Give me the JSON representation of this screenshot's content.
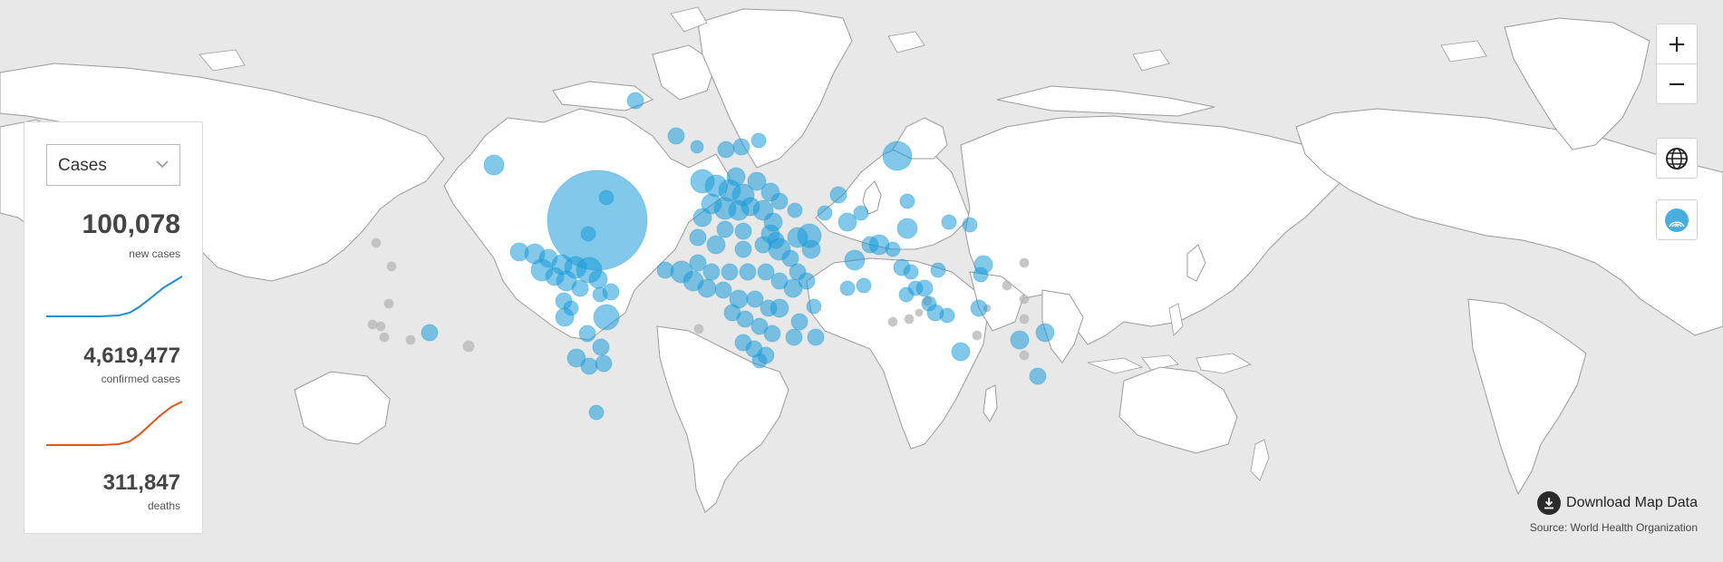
{
  "map": {
    "colors": {
      "ocean": "#e8e8e8",
      "land": "#ffffff",
      "border": "#9a9a9a",
      "bubble": "#1a9ad8",
      "bubble_grey": "#b9b9b9"
    }
  },
  "stats_panel": {
    "metric_select": {
      "selected": "Cases",
      "icon": "chevron-down-icon"
    },
    "new_cases": {
      "value": "100,078",
      "label": "new cases",
      "trend_color": "#1a8fd0"
    },
    "confirmed": {
      "value": "4,619,477",
      "label": "confirmed cases",
      "trend_color": "#e0551a"
    },
    "deaths": {
      "value": "311,847",
      "label": "deaths"
    }
  },
  "controls": {
    "zoom_in": "+",
    "zoom_out": "−",
    "globe_icon": "globe-icon",
    "bubble_layer_icon": "bubble-layer-icon"
  },
  "footer": {
    "download_label": "Download Map Data",
    "download_icon": "download-icon",
    "source": "Source: World Health Organization"
  }
}
